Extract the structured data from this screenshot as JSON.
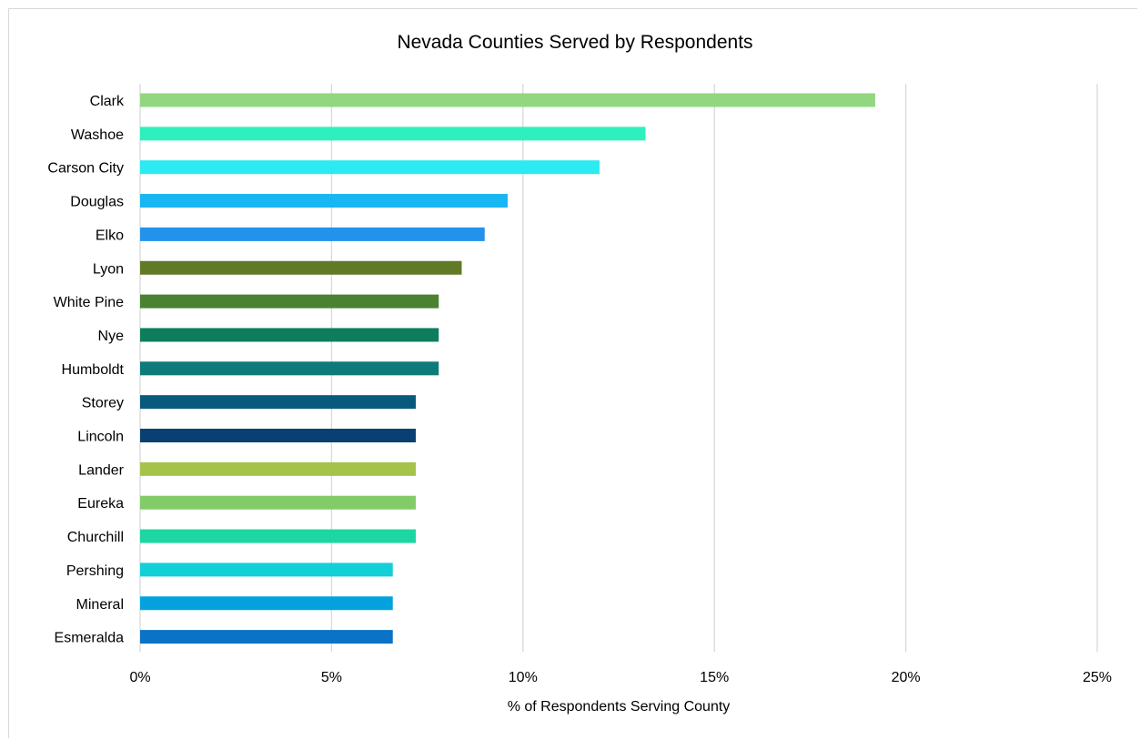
{
  "chart_data": {
    "type": "bar",
    "orientation": "horizontal",
    "title": "Nevada Counties Served by Respondents",
    "xlabel": "% of Respondents Serving County",
    "ylabel": "",
    "xlim": [
      0,
      25
    ],
    "x_ticks": [
      "0%",
      "5%",
      "10%",
      "15%",
      "20%",
      "25%"
    ],
    "grid": "vertical",
    "legend": "none",
    "categories": [
      "Clark",
      "Washoe",
      "Carson City",
      "Douglas",
      "Elko",
      "Lyon",
      "White Pine",
      "Nye",
      "Humboldt",
      "Storey",
      "Lincoln",
      "Lander",
      "Eureka",
      "Churchill",
      "Pershing",
      "Mineral",
      "Esmeralda"
    ],
    "values": [
      19.2,
      13.2,
      12.0,
      9.6,
      9.0,
      8.4,
      7.8,
      7.8,
      7.8,
      7.2,
      7.2,
      7.2,
      7.2,
      7.2,
      6.6,
      6.6,
      6.6
    ],
    "colors": [
      "#92d67f",
      "#2ef0bd",
      "#2ceaf2",
      "#18b6f2",
      "#2292ea",
      "#617a26",
      "#4a8231",
      "#0e7d5e",
      "#0e7a7a",
      "#075a7c",
      "#0a3f72",
      "#a5c24a",
      "#82cc67",
      "#1dd6a1",
      "#13cfd8",
      "#04a2dc",
      "#0a72c7"
    ]
  }
}
